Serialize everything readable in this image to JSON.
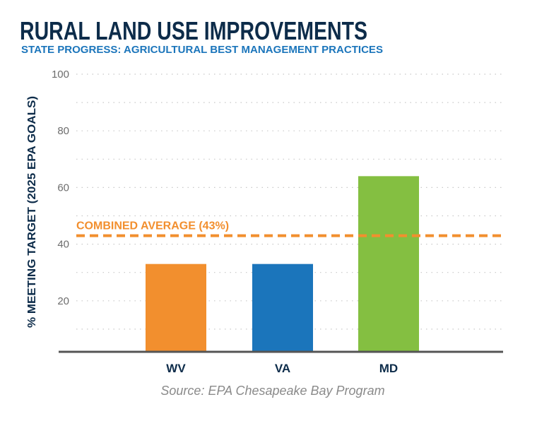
{
  "chart_data": {
    "type": "bar",
    "title": "RURAL LAND USE IMPROVEMENTS",
    "subtitle": "STATE PROGRESS: AGRICULTURAL BEST MANAGEMENT PRACTICES",
    "ylabel": "% MEETING TARGET (2025 EPA GOALS)",
    "xlabel": "",
    "categories": [
      "WV",
      "VA",
      "MD"
    ],
    "values": [
      33,
      33,
      64
    ],
    "colors": [
      "#f28f2e",
      "#1b75bb",
      "#84bf41"
    ],
    "ylim": [
      0,
      100
    ],
    "yticks": [
      20,
      40,
      60,
      80,
      100
    ],
    "grid": "dotted horizontal every 10",
    "reference_line": {
      "label": "COMBINED AVERAGE (43%)",
      "value": 43,
      "color": "#f28f2e",
      "style": "dashed"
    },
    "source": "Source: EPA Chesapeake Bay Program"
  }
}
